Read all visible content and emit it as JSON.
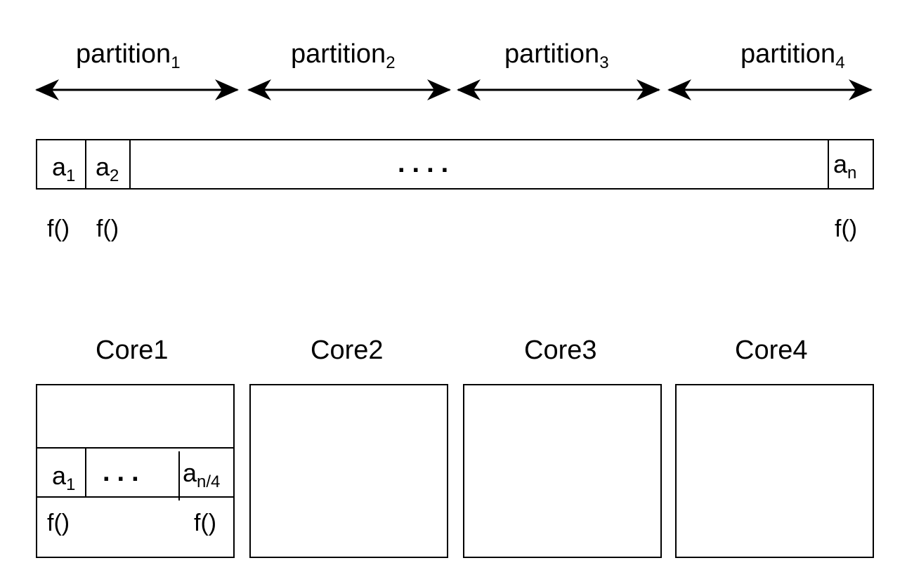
{
  "partitions": [
    {
      "base": "partition",
      "sub": "1"
    },
    {
      "base": "partition",
      "sub": "2"
    },
    {
      "base": "partition",
      "sub": "3"
    },
    {
      "base": "partition",
      "sub": "4"
    }
  ],
  "array": {
    "first": {
      "base": "a",
      "sub": "1"
    },
    "second": {
      "base": "a",
      "sub": "2"
    },
    "ellipsis": "....",
    "last": {
      "base": "a",
      "sub": "n"
    },
    "func_label": "f()"
  },
  "cores": [
    "Core1",
    "Core2",
    "Core3",
    "Core4"
  ],
  "core1_detail": {
    "first": {
      "base": "a",
      "sub": "1"
    },
    "ellipsis": "...",
    "last": {
      "base": "a",
      "sub": "n/4"
    },
    "func_label": "f()"
  }
}
